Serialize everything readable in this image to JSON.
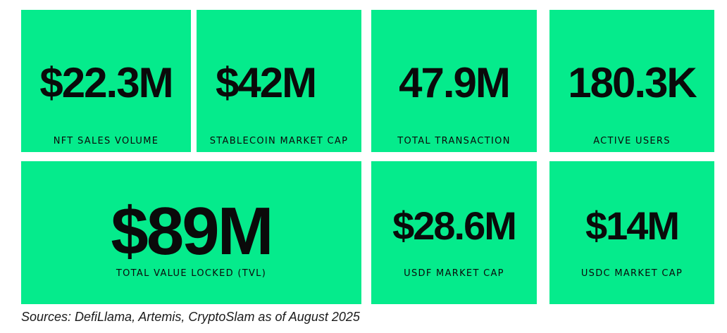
{
  "stats": [
    {
      "value": "$22.3M",
      "label": "NFT SALES VOLUME"
    },
    {
      "value": "$42M",
      "label": "STABLECOIN MARKET CAP"
    },
    {
      "value": "47.9M",
      "label": "TOTAL TRANSACTION"
    },
    {
      "value": "180.3K",
      "label": "ACTIVE USERS"
    },
    {
      "value": "$89M",
      "label": "TOTAL VALUE LOCKED (TVL)"
    },
    {
      "value": "$28.6M",
      "label": "USDF MARKET CAP"
    },
    {
      "value": "$14M",
      "label": "USDC MARKET CAP"
    }
  ],
  "footer": {
    "sources": "Sources: DefiLlama, Artemis, CryptoSlam as of August 2025"
  },
  "colors": {
    "card_background": "#05eb8c",
    "text": "#0a0a0a"
  }
}
